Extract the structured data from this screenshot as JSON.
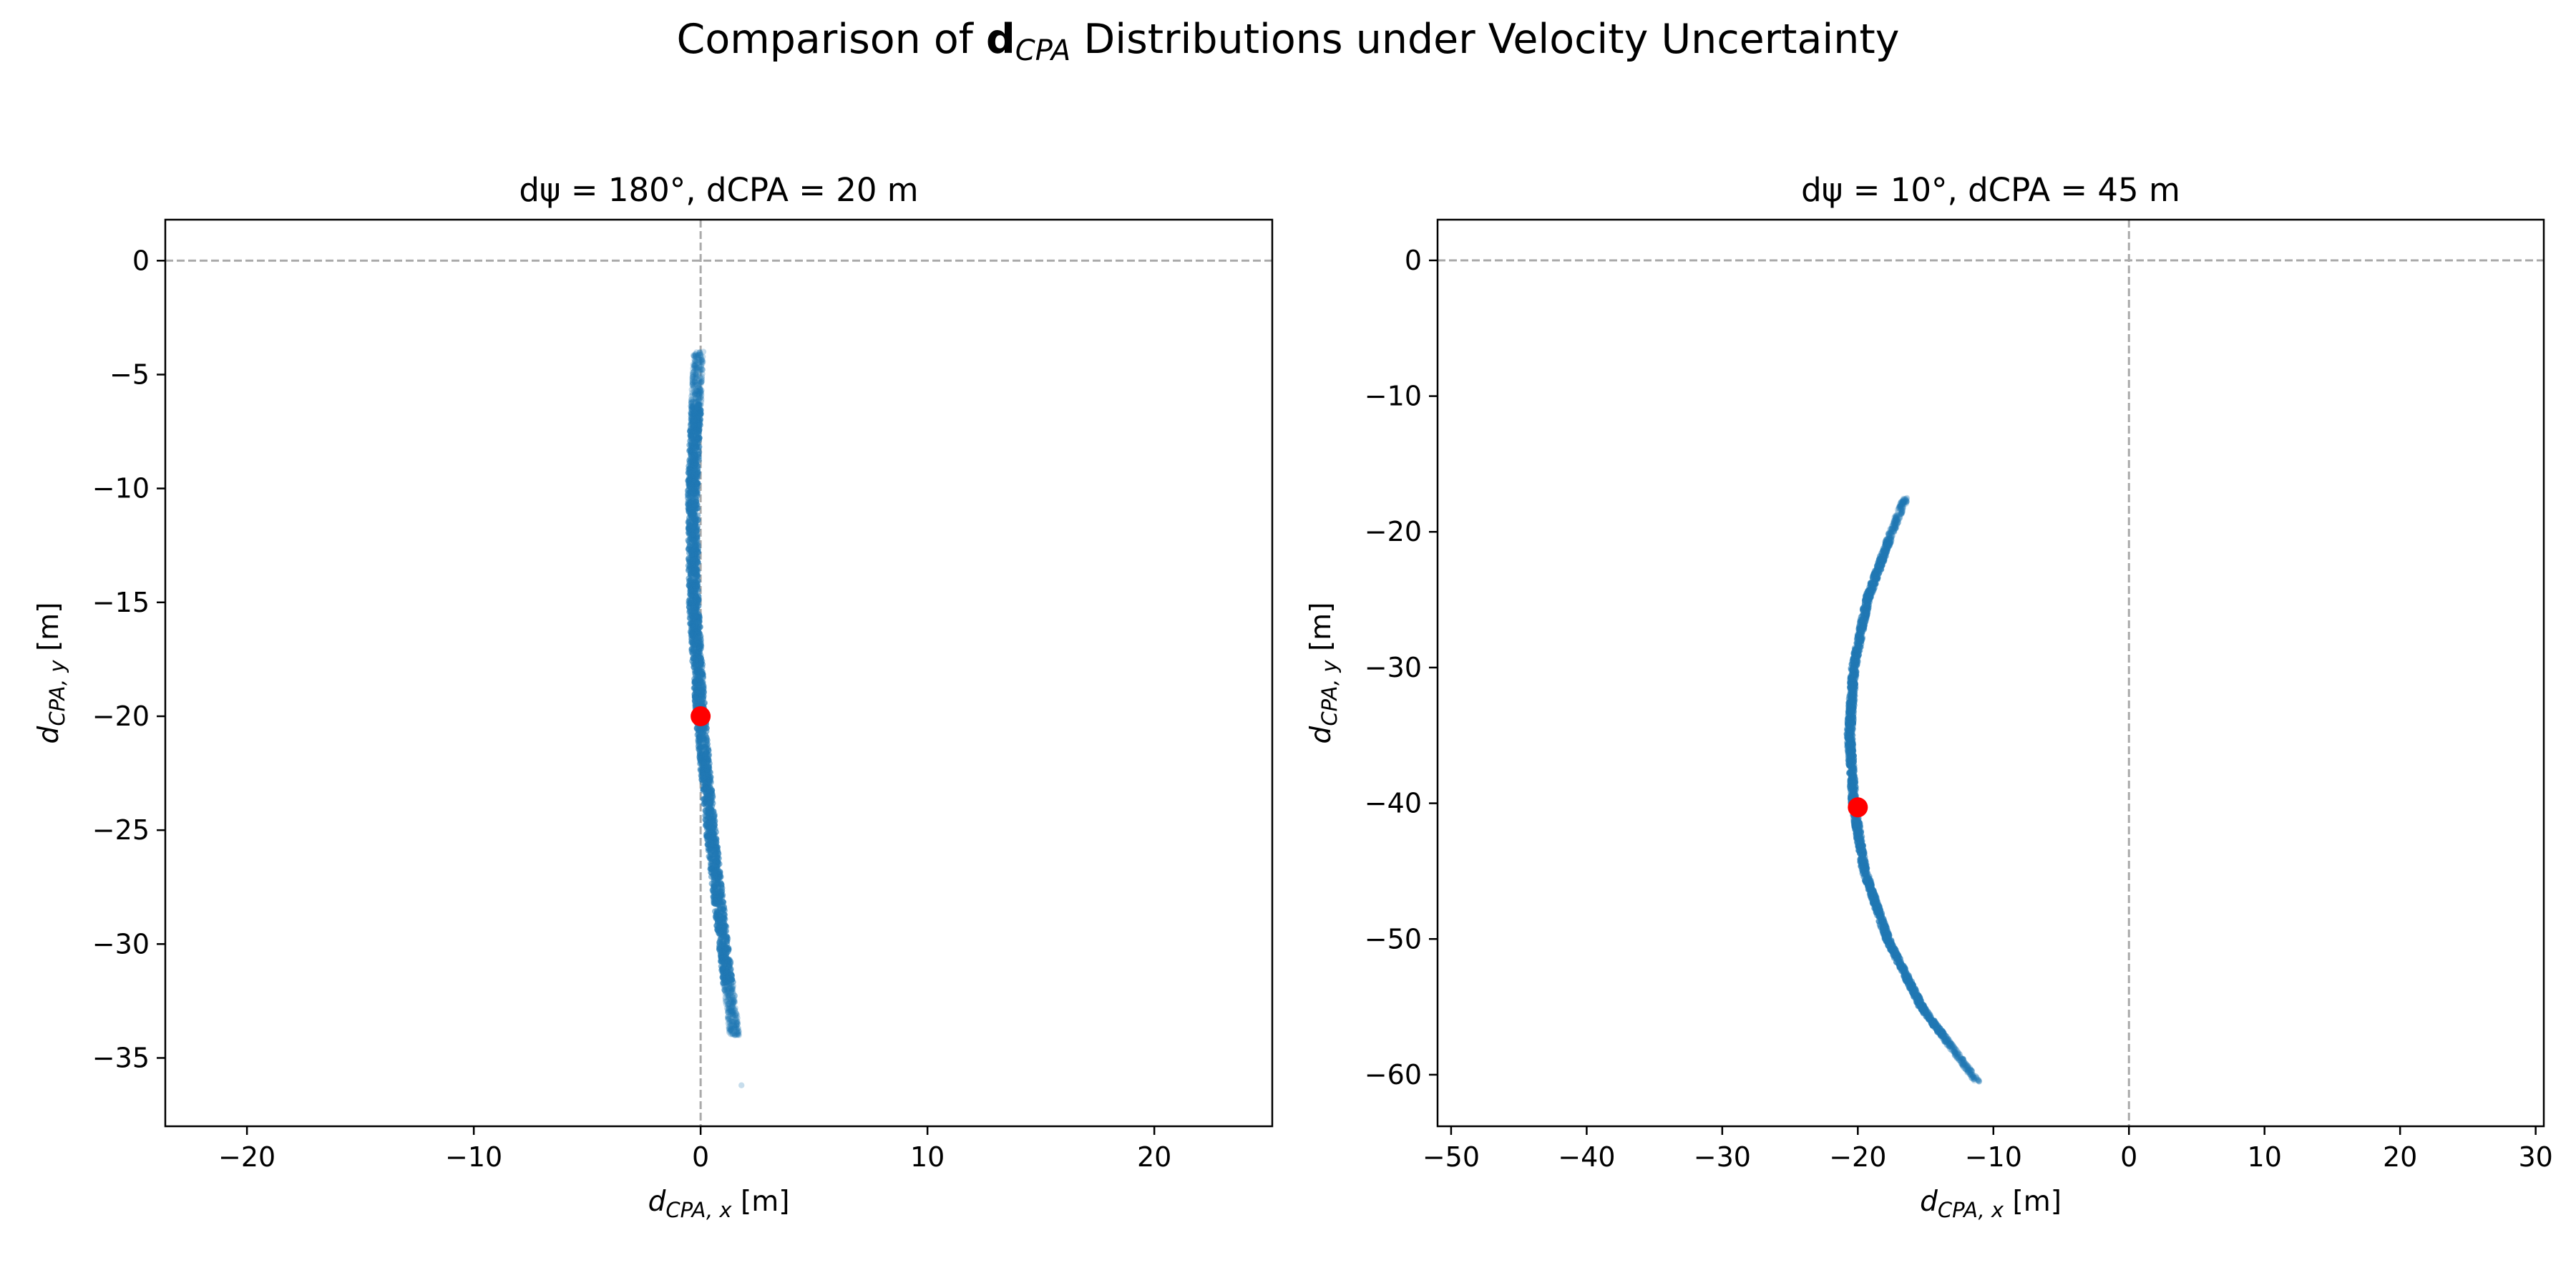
{
  "figure": {
    "title_prefix": "Comparison of ",
    "title_bold": "d",
    "title_sub": "CPA",
    "title_suffix": " Distributions under Velocity Uncertainty"
  },
  "colors": {
    "points": "#1f77b4",
    "marker": "#ff0000",
    "reference_lines": "#aaaaaa",
    "axes": "#000000"
  },
  "chart_data": [
    {
      "type": "scatter",
      "title": "dψ = 180°, dCPA = 20 m",
      "xlabel": {
        "main": "d",
        "sub": "CPA, x",
        "unit": " [m]"
      },
      "ylabel": {
        "main": "d",
        "sub": "CPA, y",
        "unit": " [m]"
      },
      "xlim": [
        -23.6,
        25.2
      ],
      "ylim": [
        -38.0,
        1.8
      ],
      "xticks": [
        -20,
        -10,
        0,
        10,
        20
      ],
      "yticks": [
        0,
        -5,
        -10,
        -15,
        -20,
        -25,
        -30,
        -35
      ],
      "reference_lines": {
        "x": 0,
        "y": 0
      },
      "samples": {
        "y_range": [
          -34.0,
          -4.0
        ],
        "x_of_y": {
          "y": [
            -4,
            -10,
            -15,
            -20,
            -25,
            -30,
            -34
          ],
          "x": [
            -0.1,
            -0.35,
            -0.3,
            0.0,
            0.45,
            1.0,
            1.5
          ]
        },
        "outliers": [
          {
            "x": 1.8,
            "y": -36.2
          }
        ]
      },
      "nominal_point": {
        "x": 0,
        "y": -20
      }
    },
    {
      "type": "scatter",
      "title": "dψ = 10°, dCPA = 45 m",
      "xlabel": {
        "main": "d",
        "sub": "CPA, x",
        "unit": " [m]"
      },
      "ylabel": {
        "main": "d",
        "sub": "CPA, y",
        "unit": " [m]"
      },
      "xlim": [
        -51.0,
        30.6
      ],
      "ylim": [
        -63.8,
        3.0
      ],
      "xticks": [
        -50,
        -40,
        -30,
        -20,
        -10,
        0,
        10,
        20,
        30
      ],
      "yticks": [
        0,
        -10,
        -20,
        -30,
        -40,
        -50,
        -60
      ],
      "reference_lines": {
        "x": 0,
        "y": 0
      },
      "samples": {
        "y_range": [
          -60.5,
          -17.5
        ],
        "x_of_y": {
          "y": [
            -17.5,
            -20,
            -25,
            -30,
            -35,
            -40,
            -45,
            -50,
            -55,
            -60.5
          ],
          "x": [
            -16.5,
            -17.5,
            -19.3,
            -20.3,
            -20.6,
            -20.3,
            -19.5,
            -17.8,
            -15.3,
            -11.2
          ]
        }
      },
      "nominal_point": {
        "x": -20,
        "y": -40.3
      }
    }
  ]
}
